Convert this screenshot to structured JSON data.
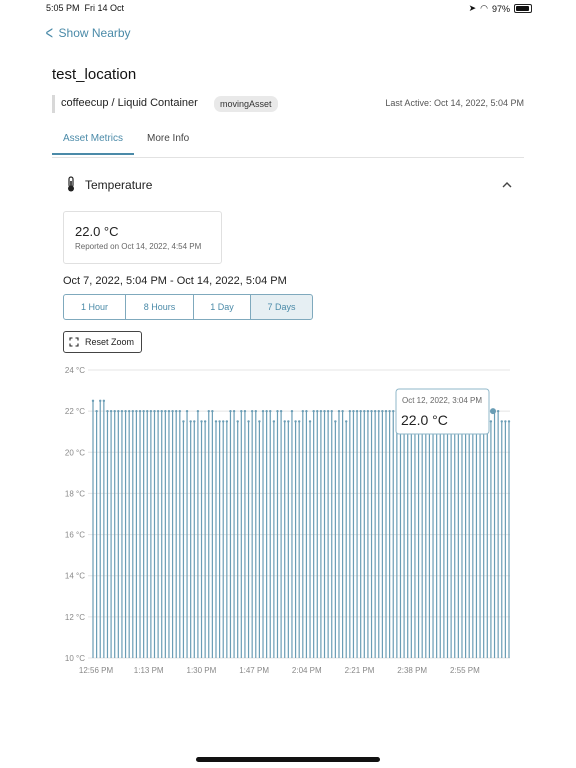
{
  "status": {
    "time": "5:05 PM",
    "date": "Fri 14 Oct",
    "battery": "97%"
  },
  "nav": {
    "back_label": "Show Nearby"
  },
  "page": {
    "title": "test_location",
    "asset_name": "coffeecup / Liquid Container",
    "badge": "movingAsset",
    "last_active": "Last Active: Oct 14, 2022, 5:04 PM"
  },
  "tabs": [
    {
      "label": "Asset Metrics"
    },
    {
      "label": "More Info"
    }
  ],
  "metric": {
    "title": "Temperature",
    "current_value": "22.0 °C",
    "reported": "Reported on Oct 14, 2022, 4:54 PM"
  },
  "range_label": "Oct 7, 2022, 5:04 PM - Oct 14, 2022, 5:04 PM",
  "time_buttons": [
    {
      "label": "1 Hour"
    },
    {
      "label": "8 Hours"
    },
    {
      "label": "1 Day"
    },
    {
      "label": "7 Days"
    }
  ],
  "selected_range": "7 Days",
  "reset_zoom_label": "Reset Zoom",
  "tooltip": {
    "date": "Oct 12, 2022, 3:04 PM",
    "value": "22.0 °C"
  },
  "colors": {
    "accent": "#4a8aa8",
    "bars": "#6a9db5"
  },
  "chart_data": {
    "type": "bar",
    "y_ticks": [
      "24 °C",
      "22 °C",
      "20 °C",
      "18 °C",
      "16 °C",
      "14 °C",
      "12 °C",
      "10 °C"
    ],
    "ylim": [
      10,
      24
    ],
    "x_ticks": [
      "12:56 PM",
      "1:13 PM",
      "1:30 PM",
      "1:47 PM",
      "2:04 PM",
      "2:21 PM",
      "2:38 PM",
      "2:55 PM"
    ],
    "grid": true,
    "series": [
      {
        "values": [
          22.5,
          22.0,
          22.5,
          22.5,
          22.0,
          22.0,
          22.0,
          22.0,
          22.0,
          22.0,
          22.0,
          22.0,
          22.0,
          22.0,
          22.0,
          22.0,
          22.0,
          22.0,
          22.0,
          22.0,
          22.0,
          22.0,
          22.0,
          22.0,
          22.0,
          21.5,
          22.0,
          21.5,
          21.5,
          22.0,
          21.5,
          21.5,
          22.0,
          22.0,
          21.5,
          21.5,
          21.5,
          21.5,
          22.0,
          22.0,
          21.5,
          22.0,
          22.0,
          21.5,
          22.0,
          22.0,
          21.5,
          22.0,
          22.0,
          22.0,
          21.5,
          22.0,
          22.0,
          21.5,
          21.5,
          22.0,
          21.5,
          21.5,
          22.0,
          22.0,
          21.5,
          22.0,
          22.0,
          22.0,
          22.0,
          22.0,
          22.0,
          21.5,
          22.0,
          22.0,
          21.5,
          22.0,
          22.0,
          22.0,
          22.0,
          22.0,
          22.0,
          22.0,
          22.0,
          22.0,
          22.0,
          22.0,
          22.0,
          22.0,
          22.5,
          22.0,
          22.0,
          22.5,
          22.5,
          22.5,
          22.5,
          22.0,
          22.0,
          22.0,
          22.5,
          22.0,
          22.0,
          22.0,
          22.5,
          22.0,
          22.0,
          22.5,
          22.0,
          22.0,
          22.0,
          22.0,
          22.0,
          21.5,
          22.0,
          22.0,
          21.5,
          22.0,
          22.0,
          21.5,
          21.5,
          21.5
        ]
      }
    ]
  }
}
